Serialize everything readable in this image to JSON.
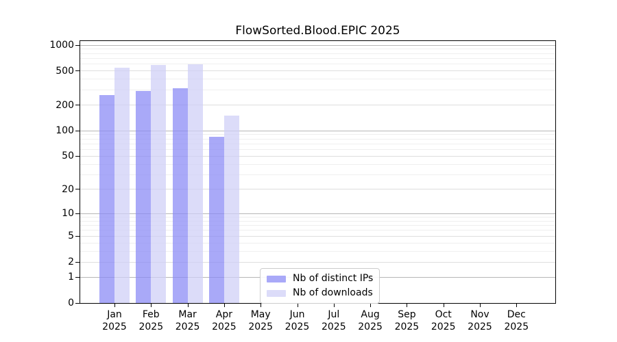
{
  "figure": {
    "title": "FlowSorted.Blood.EPIC 2025"
  },
  "chart_data": {
    "type": "bar",
    "title": "FlowSorted.Blood.EPIC 2025",
    "categories": [
      "Jan 2025",
      "Feb 2025",
      "Mar 2025",
      "Apr 2025",
      "May 2025",
      "Jun 2025",
      "Jul 2025",
      "Aug 2025",
      "Sep 2025",
      "Oct 2025",
      "Nov 2025",
      "Dec 2025"
    ],
    "series": [
      {
        "name": "Nb of distinct IPs",
        "color": "#a9a9f8",
        "values": [
          260,
          295,
          315,
          85,
          0,
          0,
          0,
          0,
          0,
          0,
          0,
          0
        ]
      },
      {
        "name": "Nb of downloads",
        "color": "#dcdcf9",
        "values": [
          550,
          590,
          600,
          150,
          0,
          0,
          0,
          0,
          0,
          0,
          0,
          0
        ]
      }
    ],
    "xlabel": "",
    "ylabel": "",
    "yscale": "log10(value+1)",
    "ylim": [
      0,
      1000
    ],
    "y_tick_values": [
      0,
      1,
      2,
      5,
      10,
      20,
      50,
      100,
      200,
      500,
      1000
    ],
    "y_tick_labels": [
      "0",
      "1",
      "2",
      "5",
      "10",
      "20",
      "50",
      "100",
      "200",
      "500",
      "1000"
    ],
    "grid": true,
    "legend_position": "bottom-center-inside",
    "colors": {
      "grid_decade": "#b6b6b6",
      "grid_labeled": "#dedede",
      "grid_minor": "#efefef",
      "spine": "#000000",
      "background": "#ffffff"
    }
  }
}
